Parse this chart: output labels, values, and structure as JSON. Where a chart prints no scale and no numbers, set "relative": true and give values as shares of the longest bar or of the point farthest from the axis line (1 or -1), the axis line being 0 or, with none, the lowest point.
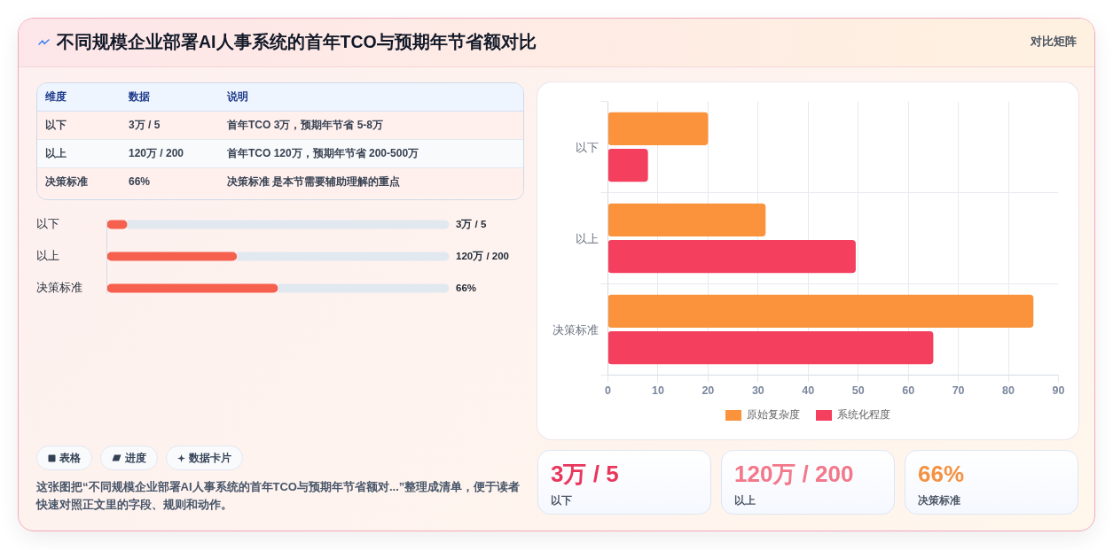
{
  "chart_data": [
    {
      "type": "other",
      "title": "不同规模企业部署AI人事系统的首年TCO与预期年节省额对比",
      "subtitle": "对比矩阵",
      "ylabel": "维度",
      "categories": [
        "数据",
        "说明"
      ],
      "y_categories": [
        "以下",
        "以上",
        "决策标准"
      ],
      "cell_labels": [
        [
          "3万 / 5",
          "首年TCO 3万，预期年节省 5-8万"
        ],
        [
          "120万 / 200",
          "首年TCO 120万，预期年节省 200-500万"
        ],
        [
          "66%",
          "决策标准 是本节需要辅助理解的重点"
        ]
      ],
      "annotations": [
        "表格",
        "进度",
        "数据卡片",
        "这张图把“不同规模企业部署AI人事系统的首年TCO与预期年节省额对...”整理成清单，便于读者快速对照正文里的字段、规则和动作。"
      ]
    },
    {
      "type": "bar",
      "orientation": "horizontal",
      "relative": true,
      "stacked": true,
      "categories": [
        "以下",
        "以上",
        "决策标准"
      ],
      "series": [
        {
          "color": "#f5604f",
          "values": [
            0.06,
            0.38,
            0.5
          ]
        },
        {
          "color": "#e2e8f0",
          "values": [
            0.94,
            0.62,
            0.5
          ]
        }
      ]
    },
    {
      "type": "other",
      "annotations": [
        "3万 / 5",
        "120万 / 200",
        "66%"
      ]
    },
    {
      "type": "bar",
      "orientation": "horizontal",
      "categories": [
        "以下",
        "以上",
        "决策标准"
      ],
      "series": [
        {
          "name": "原始复杂度",
          "color": "#fb923c",
          "values": [
            20,
            31.5,
            85
          ]
        },
        {
          "name": "系统化程度",
          "color": "#f43f5e",
          "values": [
            8,
            49.5,
            65
          ]
        }
      ],
      "xlim": [
        0,
        90
      ],
      "xticks": [
        0,
        10,
        20,
        30,
        40,
        50,
        60,
        70,
        80,
        90
      ],
      "grid": true,
      "legend": "bottom"
    },
    {
      "type": "other",
      "categories": [
        "以下",
        "以上",
        "决策标准"
      ],
      "value_labels": [
        "3万 / 5",
        "120万 / 200",
        "66%"
      ]
    }
  ]
}
